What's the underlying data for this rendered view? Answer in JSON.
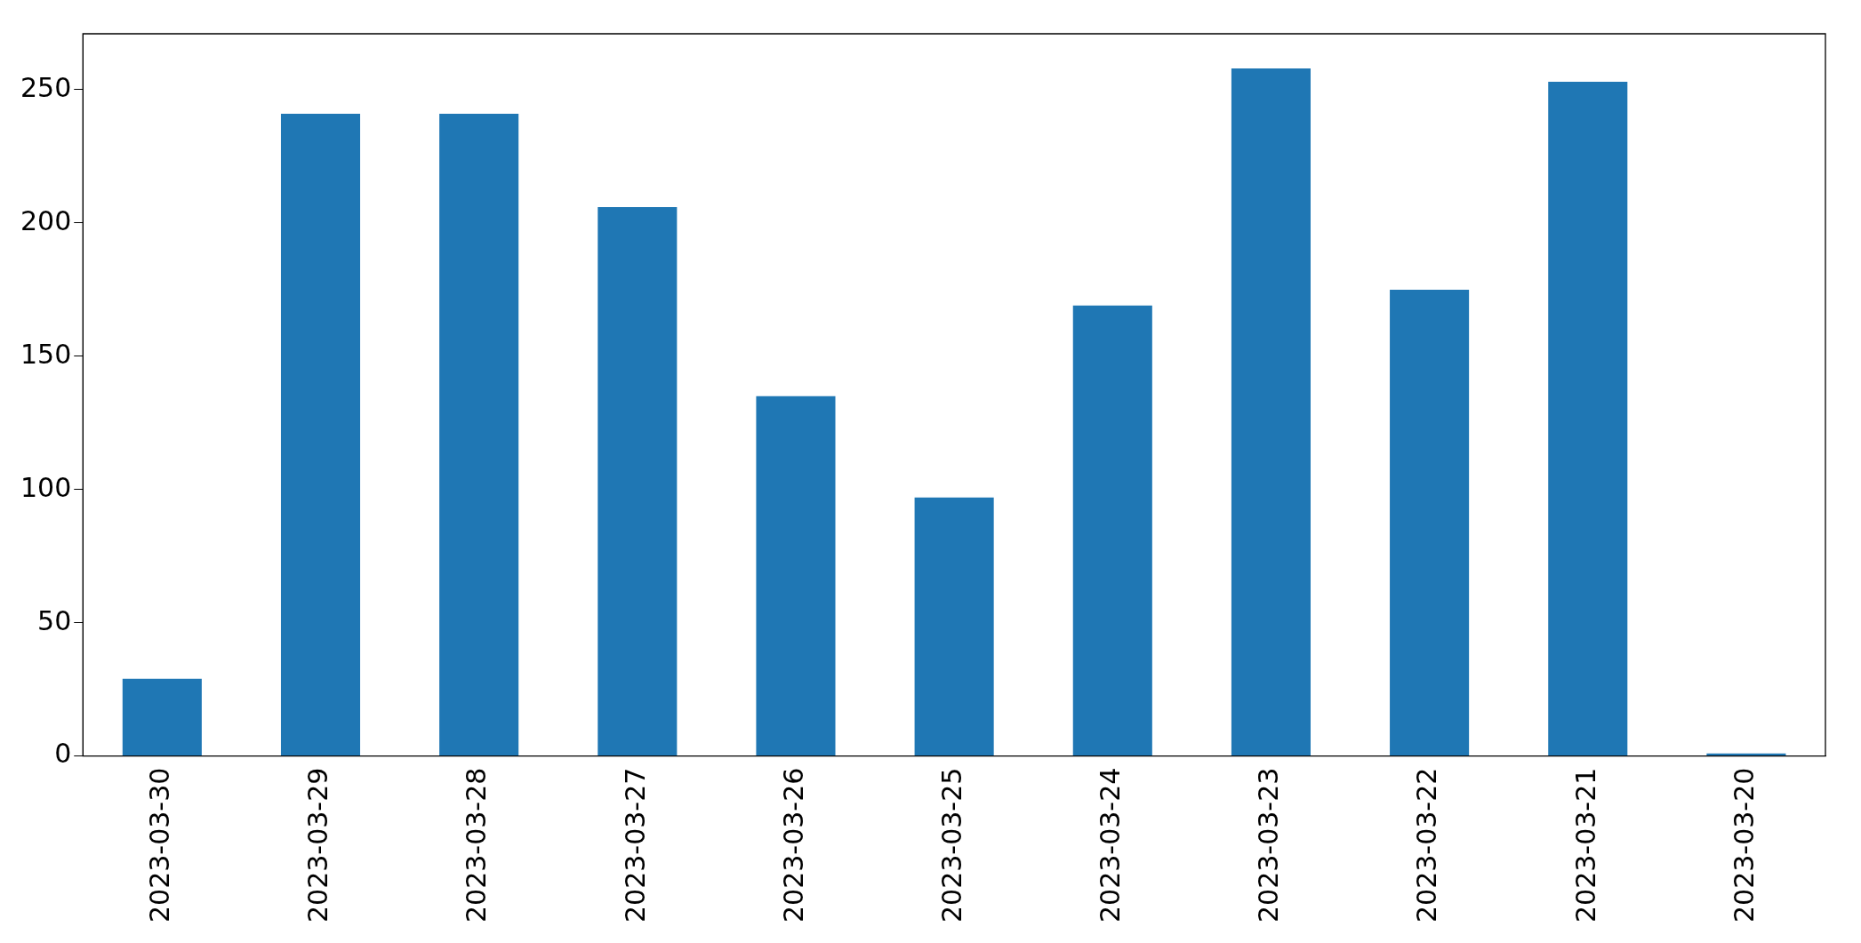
{
  "chart_data": {
    "type": "bar",
    "categories": [
      "2023-03-30",
      "2023-03-29",
      "2023-03-28",
      "2023-03-27",
      "2023-03-26",
      "2023-03-25",
      "2023-03-24",
      "2023-03-23",
      "2023-03-22",
      "2023-03-21",
      "2023-03-20"
    ],
    "values": [
      29,
      241,
      241,
      206,
      135,
      97,
      169,
      258,
      175,
      253,
      1
    ],
    "color": "#1f77b4",
    "ylim": [
      0,
      271
    ],
    "yticks": [
      0,
      50,
      100,
      150,
      200,
      250
    ],
    "grid": false,
    "legend": false
  }
}
